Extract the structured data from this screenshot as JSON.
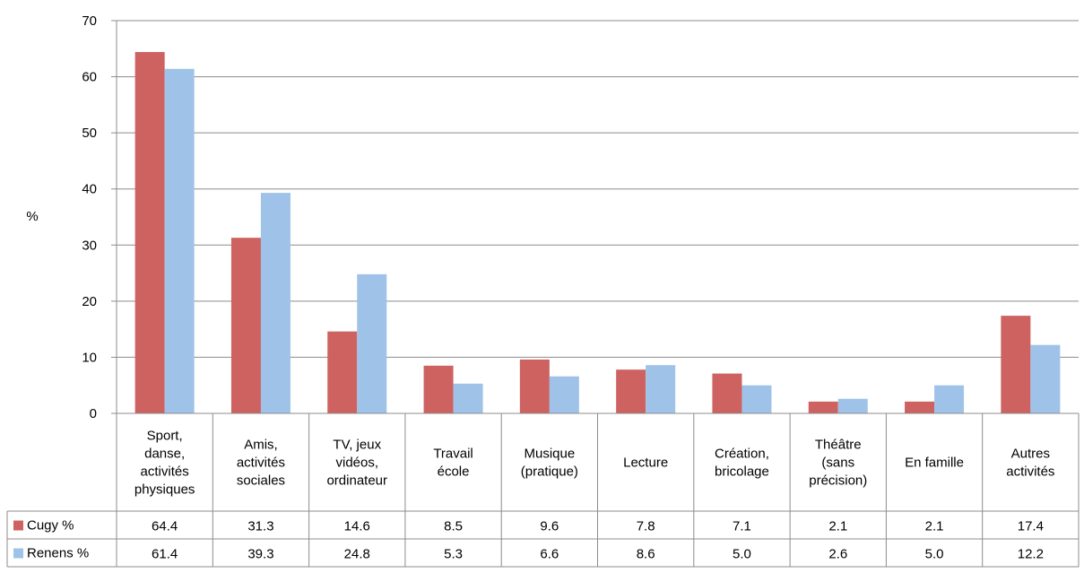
{
  "chart_data": {
    "type": "bar",
    "title": "",
    "xlabel": "",
    "ylabel": "%",
    "ylim": [
      0,
      70
    ],
    "yticks": [
      0,
      10,
      20,
      30,
      40,
      50,
      60,
      70
    ],
    "grid": true,
    "legend": "data-table-left",
    "categories": [
      [
        "Sport,",
        "danse,",
        "activités",
        "physiques"
      ],
      [
        "Amis,",
        "activités",
        "sociales"
      ],
      [
        "TV, jeux",
        "vidéos,",
        "ordinateur"
      ],
      [
        "Travail",
        "école"
      ],
      [
        "Musique",
        "(pratique)"
      ],
      [
        "Lecture"
      ],
      [
        "Création,",
        "bricolage"
      ],
      [
        "Théâtre",
        "(sans",
        "précision)"
      ],
      [
        "En famille"
      ],
      [
        "Autres",
        "activités"
      ]
    ],
    "series": [
      {
        "name": "Cugy %",
        "color": "#CD6260",
        "values": [
          64.4,
          31.3,
          14.6,
          8.5,
          9.6,
          7.8,
          7.1,
          2.1,
          2.1,
          17.4
        ],
        "labels": [
          "64.4",
          "31.3",
          "14.6",
          "8.5",
          "9.6",
          "7.8",
          "7.1",
          "2.1",
          "2.1",
          "17.4"
        ]
      },
      {
        "name": "Renens %",
        "color": "#9FC3E8",
        "values": [
          61.4,
          39.3,
          24.8,
          5.3,
          6.6,
          8.6,
          5.0,
          2.6,
          5.0,
          12.2
        ],
        "labels": [
          "61.4",
          "39.3",
          "24.8",
          "5.3",
          "6.6",
          "8.6",
          "5.0",
          "2.6",
          "5.0",
          "12.2"
        ]
      }
    ]
  }
}
